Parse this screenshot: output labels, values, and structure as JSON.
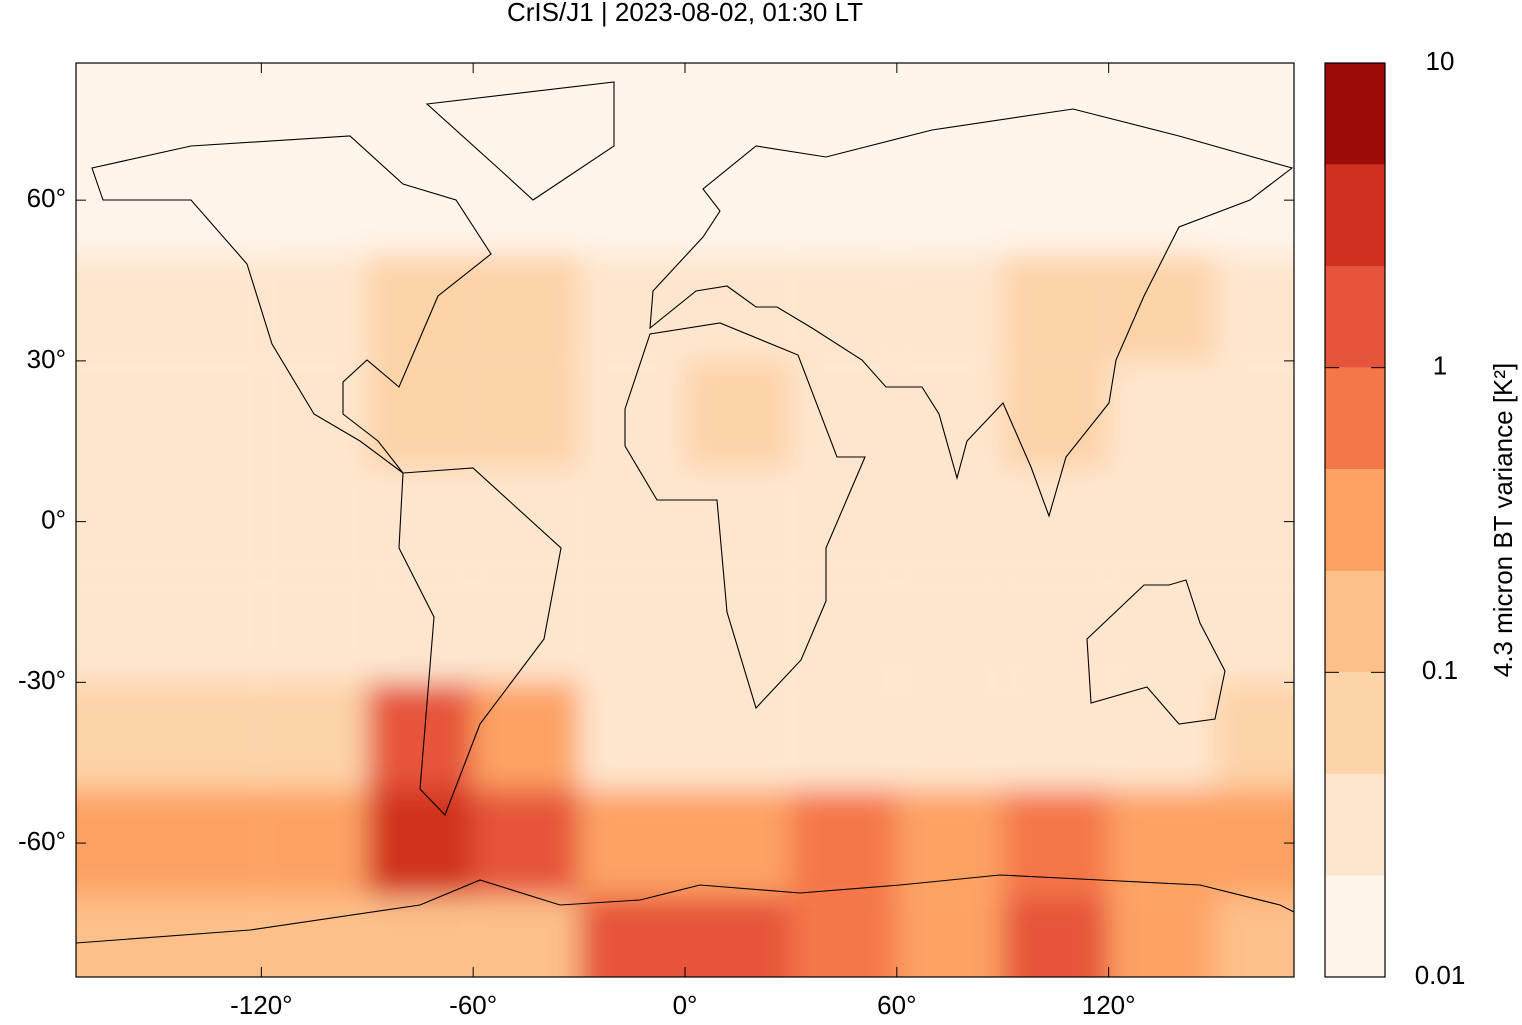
{
  "chart_data": {
    "type": "heatmap",
    "title": "CrIS/J1 | 2023-08-02, 01:30 LT",
    "xlim": [
      -172.5,
      172.5
    ],
    "ylim": [
      -85,
      85.6
    ],
    "xticks": [
      {
        "value": -120,
        "label": "-120°"
      },
      {
        "value": -60,
        "label": "-60°"
      },
      {
        "value": 0,
        "label": "0°"
      },
      {
        "value": 60,
        "label": "60°"
      },
      {
        "value": 120,
        "label": "120°"
      }
    ],
    "yticks": [
      {
        "value": 60,
        "label": "60°"
      },
      {
        "value": 30,
        "label": "30°"
      },
      {
        "value": 0,
        "label": "0°"
      },
      {
        "value": -30,
        "label": "-30°"
      },
      {
        "value": -60,
        "label": "-60°"
      }
    ],
    "x": [
      -165,
      -135,
      -105,
      -75,
      -45,
      -15,
      15,
      45,
      75,
      105,
      135,
      165
    ],
    "y": [
      80,
      60,
      40,
      20,
      0,
      -20,
      -40,
      -60,
      -80
    ],
    "z": [
      [
        0.01,
        0.01,
        0.01,
        0.01,
        0.01,
        0.01,
        0.01,
        0.01,
        0.01,
        0.01,
        0.01,
        0.01
      ],
      [
        0.015,
        0.015,
        0.015,
        0.015,
        0.015,
        0.015,
        0.015,
        0.015,
        0.015,
        0.015,
        0.015,
        0.015
      ],
      [
        0.04,
        0.04,
        0.04,
        0.06,
        0.05,
        0.04,
        0.03,
        0.04,
        0.03,
        0.05,
        0.05,
        0.04
      ],
      [
        0.04,
        0.04,
        0.04,
        0.05,
        0.05,
        0.04,
        0.05,
        0.04,
        0.04,
        0.05,
        0.04,
        0.04
      ],
      [
        0.03,
        0.03,
        0.03,
        0.03,
        0.04,
        0.04,
        0.03,
        0.03,
        0.03,
        0.04,
        0.03,
        0.03
      ],
      [
        0.03,
        0.03,
        0.04,
        0.03,
        0.03,
        0.03,
        0.03,
        0.03,
        0.03,
        0.03,
        0.03,
        0.03
      ],
      [
        0.05,
        0.06,
        0.08,
        1.5,
        0.3,
        0.03,
        0.03,
        0.04,
        0.04,
        0.04,
        0.04,
        0.05
      ],
      [
        0.3,
        0.3,
        0.4,
        3,
        1.5,
        0.3,
        0.4,
        0.5,
        0.4,
        0.8,
        0.4,
        0.4
      ],
      [
        0.2,
        0.2,
        0.15,
        0.1,
        0.15,
        1,
        1.5,
        0.5,
        0.3,
        1.2,
        0.3,
        0.2
      ]
    ],
    "colorbar": {
      "log": true,
      "levels": [
        0.01,
        0.0215,
        0.0464,
        0.1,
        0.215,
        0.464,
        1,
        2.15,
        4.64,
        10
      ],
      "colors": [
        "#fff5eb",
        "#fee6ce",
        "#fdd3a8",
        "#fdc08a",
        "#fda263",
        "#f4774a",
        "#e6553a",
        "#d0301f",
        "#9b0b08"
      ],
      "ticks": [
        0.01,
        0.1,
        1,
        10
      ],
      "label": "4.3 micron BT variance [K²]"
    }
  }
}
